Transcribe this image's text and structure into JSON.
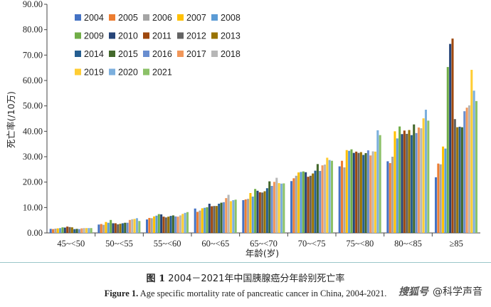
{
  "chart_data": {
    "type": "bar",
    "ylabel": "死亡率(/10万)",
    "xlabel": "年龄(岁)",
    "ylim": [
      0,
      90
    ],
    "yticks": [
      "0.00",
      "10.00",
      "20.00",
      "30.00",
      "40.00",
      "50.00",
      "60.00",
      "70.00",
      "80.00",
      "90.00"
    ],
    "grid": false,
    "legend_position": "top-left",
    "categories": [
      "45~<50",
      "50~<55",
      "55~<60",
      "60~<65",
      "65~<70",
      "70~<75",
      "75~<80",
      "80~<85",
      "≥85"
    ],
    "series": [
      {
        "name": "2004",
        "color": "#4472c4",
        "values": [
          1.6,
          3.3,
          5.3,
          9.6,
          12.9,
          20.4,
          26.2,
          28.2,
          21.9
        ]
      },
      {
        "name": "2005",
        "color": "#ed7d31",
        "values": [
          1.5,
          3.5,
          5.9,
          8.3,
          13.2,
          21.5,
          28.4,
          27.5,
          27.3
        ]
      },
      {
        "name": "2006",
        "color": "#a5a5a5",
        "values": [
          1.7,
          3.2,
          5.8,
          8.8,
          13.4,
          22.5,
          25.8,
          30.0,
          27.0
        ]
      },
      {
        "name": "2007",
        "color": "#ffc000",
        "values": [
          1.8,
          4.3,
          6.5,
          9.7,
          15.7,
          23.8,
          32.6,
          40.0,
          34.0
        ]
      },
      {
        "name": "2008",
        "color": "#5b9bd5",
        "values": [
          1.9,
          4.0,
          6.8,
          9.9,
          14.3,
          24.0,
          32.3,
          37.2,
          33.2
        ]
      },
      {
        "name": "2009",
        "color": "#70ad47",
        "values": [
          2.2,
          5.1,
          7.4,
          10.1,
          17.3,
          24.2,
          32.9,
          41.9,
          65.3
        ]
      },
      {
        "name": "2010",
        "color": "#264478",
        "values": [
          2.1,
          3.8,
          7.3,
          11.5,
          16.6,
          23.9,
          31.5,
          38.9,
          74.4
        ]
      },
      {
        "name": "2011",
        "color": "#9e480e",
        "values": [
          2.5,
          3.8,
          6.4,
          10.5,
          16.0,
          22.1,
          32.0,
          40.3,
          76.5
        ]
      },
      {
        "name": "2012",
        "color": "#636363",
        "values": [
          2.3,
          3.4,
          6.1,
          10.6,
          15.9,
          22.5,
          31.5,
          39.0,
          44.8
        ]
      },
      {
        "name": "2013",
        "color": "#997300",
        "values": [
          2.2,
          3.6,
          6.4,
          10.6,
          16.4,
          23.4,
          31.8,
          40.5,
          41.6
        ]
      },
      {
        "name": "2014",
        "color": "#255e91",
        "values": [
          1.5,
          3.8,
          6.7,
          11.5,
          17.6,
          24.5,
          30.7,
          38.5,
          41.8
        ]
      },
      {
        "name": "2015",
        "color": "#43682b",
        "values": [
          1.6,
          4.0,
          6.9,
          11.9,
          20.3,
          27.1,
          31.4,
          42.7,
          41.6
        ]
      },
      {
        "name": "2016",
        "color": "#698ed0",
        "values": [
          1.5,
          4.0,
          6.5,
          12.1,
          18.5,
          24.4,
          32.5,
          39.3,
          47.9
        ]
      },
      {
        "name": "2017",
        "color": "#f1975a",
        "values": [
          1.8,
          5.1,
          6.4,
          13.7,
          20.1,
          26.6,
          30.5,
          41.5,
          49.3
        ]
      },
      {
        "name": "2018",
        "color": "#b7b7b7",
        "values": [
          1.9,
          5.4,
          6.9,
          15.0,
          21.7,
          26.9,
          32.1,
          41.2,
          50.2
        ]
      },
      {
        "name": "2019",
        "color": "#ffcd33",
        "values": [
          1.9,
          5.5,
          7.5,
          12.5,
          19.6,
          29.6,
          32.0,
          45.1,
          64.2
        ]
      },
      {
        "name": "2020",
        "color": "#7cafdd",
        "values": [
          1.9,
          5.8,
          7.9,
          12.9,
          19.4,
          28.7,
          40.4,
          48.5,
          56.0
        ]
      },
      {
        "name": "2021",
        "color": "#8cc168",
        "values": [
          1.9,
          4.7,
          8.2,
          13.1,
          19.5,
          28.4,
          38.5,
          44.2,
          51.9
        ]
      }
    ]
  },
  "caption": {
    "cn_label": "图 1",
    "cn_text": "2004－2021年中国胰腺癌分年龄别死亡率",
    "en_label": "Figure 1.",
    "en_text": "Age specific mortality rate of pancreatic cancer in China, 2004-2021."
  },
  "watermark": {
    "logo": "搜狐号",
    "text": "@科学声音"
  }
}
